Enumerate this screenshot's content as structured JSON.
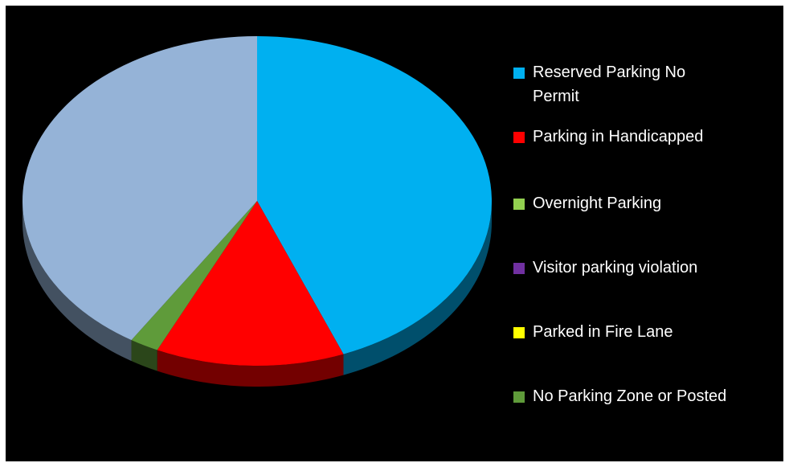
{
  "chart_data": {
    "type": "pie3d",
    "categories": [
      "Reserved Parking No Permit",
      "Parking in Handicapped",
      "Overnight Parking",
      "Visitor parking violation",
      "Parked in Fire Lane",
      "No Parking Zone or Posted",
      null
    ],
    "values": [
      44,
      13,
      0,
      0,
      0,
      2,
      41
    ],
    "colors": [
      "#00b0f0",
      "#ff0000",
      "#92d050",
      "#7030a0",
      "#ffff00",
      "#5f9b3a",
      "#95b3d7"
    ],
    "legend": "right"
  }
}
